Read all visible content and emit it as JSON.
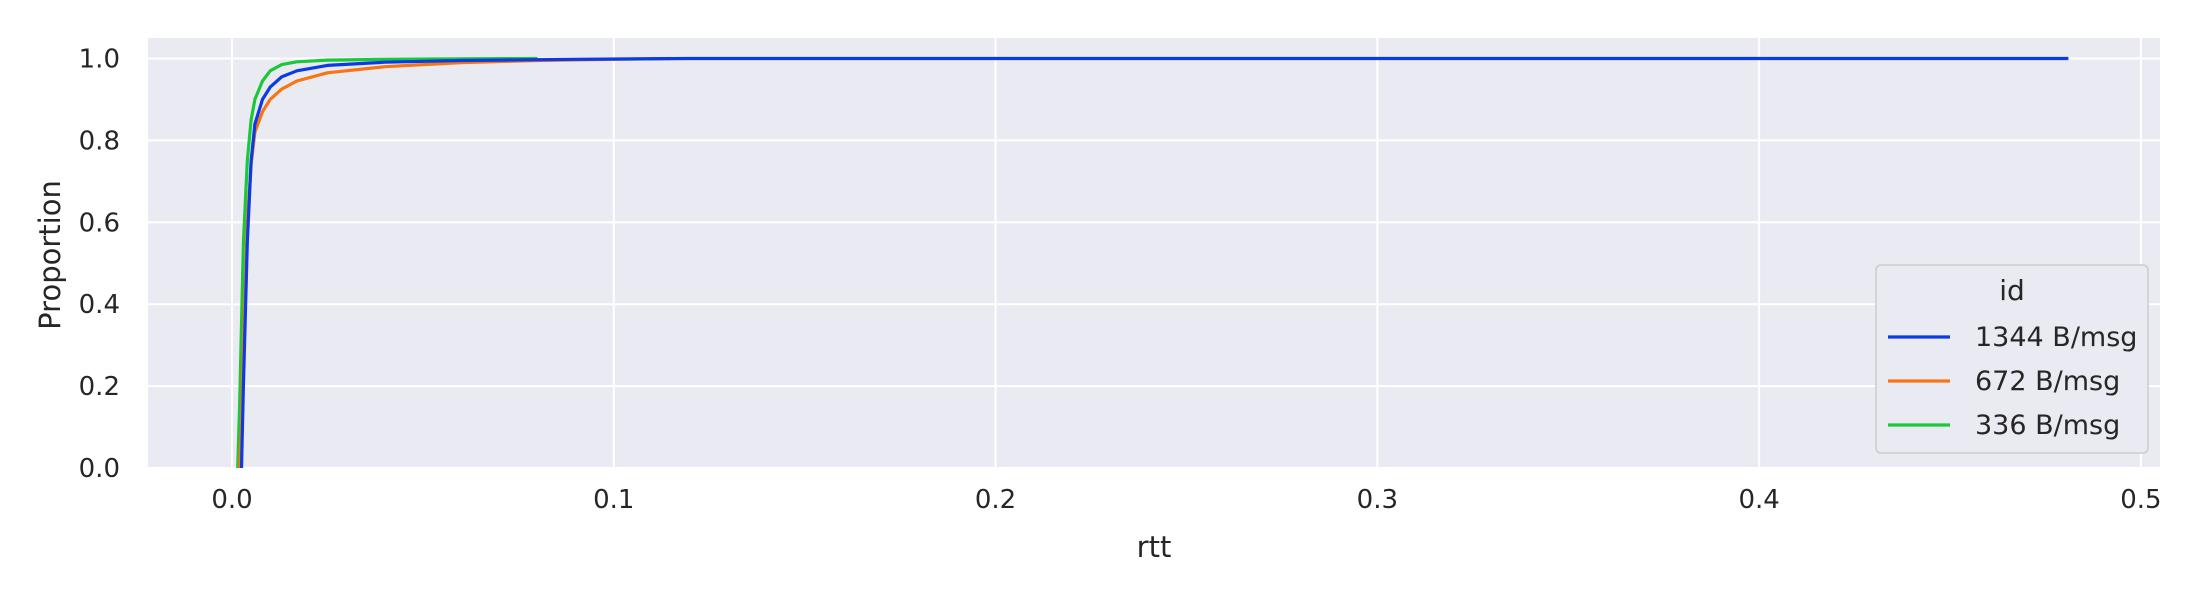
{
  "chart_data": {
    "type": "line",
    "title": "",
    "xlabel": "rtt",
    "ylabel": "Proportion",
    "xlim": [
      -0.022,
      0.505
    ],
    "ylim": [
      0.0,
      1.05
    ],
    "xticks": [
      0.0,
      0.1,
      0.2,
      0.3,
      0.4,
      0.5
    ],
    "xtick_labels": [
      "0.0",
      "0.1",
      "0.2",
      "0.3",
      "0.4",
      "0.5"
    ],
    "yticks": [
      0.0,
      0.2,
      0.4,
      0.6,
      0.8,
      1.0
    ],
    "ytick_labels": [
      "0.0",
      "0.2",
      "0.4",
      "0.6",
      "0.8",
      "1.0"
    ],
    "grid": true,
    "background": "#eaeaf2",
    "legend": {
      "title": "id",
      "position": "lower-right"
    },
    "series": [
      {
        "name": "1344 B/msg",
        "color": "#0b3be3",
        "x": [
          0.0025,
          0.003,
          0.004,
          0.005,
          0.006,
          0.008,
          0.01,
          0.013,
          0.017,
          0.025,
          0.04,
          0.06,
          0.09,
          0.12,
          0.2,
          0.3,
          0.4,
          0.481
        ],
        "y": [
          0.0,
          0.2,
          0.55,
          0.75,
          0.84,
          0.9,
          0.93,
          0.955,
          0.97,
          0.983,
          0.991,
          0.995,
          0.998,
          1.0,
          1.0,
          1.0,
          1.0,
          1.0
        ]
      },
      {
        "name": "672 B/msg",
        "color": "#f97413",
        "x": [
          0.002,
          0.0025,
          0.003,
          0.004,
          0.005,
          0.006,
          0.008,
          0.01,
          0.013,
          0.017,
          0.025,
          0.04,
          0.06,
          0.08,
          0.1,
          0.115
        ],
        "y": [
          0.0,
          0.1,
          0.3,
          0.6,
          0.74,
          0.82,
          0.87,
          0.9,
          0.925,
          0.945,
          0.965,
          0.98,
          0.99,
          0.995,
          0.998,
          1.0
        ]
      },
      {
        "name": "336 B/msg",
        "color": "#1ac938",
        "x": [
          0.0015,
          0.002,
          0.003,
          0.004,
          0.005,
          0.006,
          0.008,
          0.01,
          0.013,
          0.017,
          0.025,
          0.04,
          0.06,
          0.08
        ],
        "y": [
          0.0,
          0.15,
          0.55,
          0.75,
          0.85,
          0.9,
          0.945,
          0.97,
          0.985,
          0.992,
          0.996,
          0.998,
          0.999,
          1.0
        ]
      }
    ]
  }
}
